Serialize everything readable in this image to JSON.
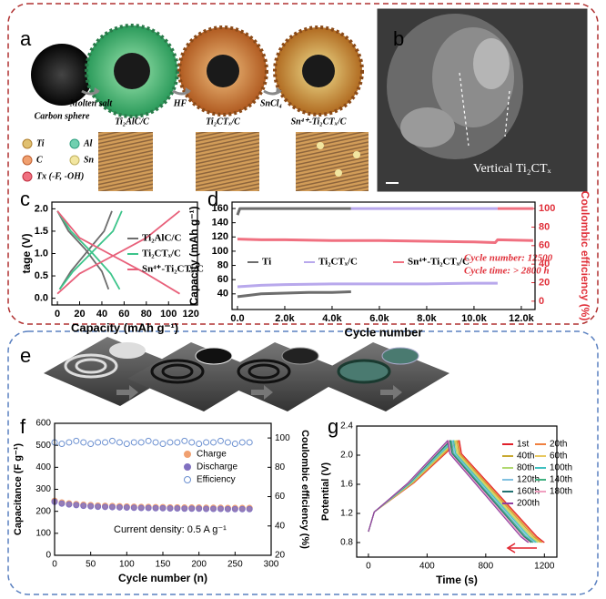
{
  "figure": {
    "panel_a": {
      "label": "a",
      "stages": [
        "Carbon sphere",
        "Ti₂AlC/C",
        "Ti₂CTₓ/C",
        "Sn⁴⁺-Ti₂CTₓ/C"
      ],
      "steps": [
        "Molten salt",
        "HF",
        "SnCl₄"
      ],
      "legend": [
        "Ti",
        "Al",
        "C",
        "Sn",
        "Tx (-F, -OH)"
      ]
    },
    "panel_b": {
      "label": "b",
      "annotation": "Vertical Ti₂CTₓ"
    },
    "panel_e": {
      "label": "e"
    }
  },
  "chart_data": [
    {
      "type": "line",
      "label": "c",
      "ylabel": "tage (V)",
      "xlabel": "Capacity (mAh g⁻¹)",
      "xlim": [
        -5,
        126
      ],
      "ylim": [
        -0.15,
        2.15
      ],
      "xticks": [
        0,
        20,
        40,
        60,
        80,
        100,
        120
      ],
      "yticks": [
        {
          "value": 0,
          "label": "0.0"
        },
        0.5,
        {
          "value": 1,
          "label": "1.0"
        },
        1.5,
        {
          "value": 2,
          "label": "2.0"
        }
      ],
      "series": [
        {
          "name": "Ti₂AlC/C",
          "color": "#6d6d6d",
          "x": [
            0,
            10,
            25,
            40,
            46,
            null,
            2,
            12,
            27,
            42,
            49
          ],
          "values": [
            1.95,
            1.5,
            1.1,
            0.6,
            0.2,
            null,
            0.2,
            0.6,
            1.05,
            1.5,
            1.95
          ]
        },
        {
          "name": "Ti₂CTₓ/C",
          "color": "#3cc48a",
          "x": [
            0,
            12,
            30,
            48,
            56,
            null,
            2,
            14,
            32,
            50,
            58
          ],
          "values": [
            1.95,
            1.5,
            1.05,
            0.55,
            0.2,
            null,
            0.2,
            0.6,
            1.05,
            1.5,
            1.95
          ]
        },
        {
          "name": "Sn⁴⁺-Ti₂CTₓ/C",
          "color": "#e8607a",
          "x": [
            0,
            20,
            50,
            80,
            110,
            null,
            0,
            20,
            50,
            80,
            110
          ],
          "values": [
            1.95,
            1.35,
            0.95,
            0.55,
            0.1,
            null,
            0.1,
            0.55,
            0.95,
            1.35,
            1.95
          ]
        }
      ]
    },
    {
      "type": "line",
      "label": "d",
      "ylabel": "Capacity (mAh g⁻¹)",
      "xlabel": "Cycle number",
      "y2label": "Coulombic efficiency (%)",
      "y2color": "#e0303a",
      "xlim": [
        -230,
        12580
      ],
      "ylim": [
        18,
        169
      ],
      "y2lim": [
        -9,
        107
      ],
      "xticks": [
        {
          "value": 0,
          "label": "0.0"
        },
        {
          "value": 2000,
          "label": "2.0k"
        },
        {
          "value": 4000,
          "label": "4.0k"
        },
        {
          "value": 6000,
          "label": "6.0k"
        },
        {
          "value": 8000,
          "label": "8.0k"
        },
        {
          "value": 10000,
          "label": "10.0k"
        },
        {
          "value": 12000,
          "label": "12.0k"
        }
      ],
      "yticks": [
        40,
        60,
        80,
        100,
        120,
        140,
        160
      ],
      "y2ticks": [
        0,
        20,
        40,
        60,
        80,
        100
      ],
      "annotations": [
        "Cycle number: 12500",
        "Cycle time: > 2800 h"
      ],
      "series": [
        {
          "name": "Ti",
          "color": "#6d6d6d",
          "x": [
            0,
            500,
            1000,
            2000,
            3000,
            4000,
            4800
          ],
          "values": [
            36,
            38,
            40,
            41,
            42,
            42,
            43
          ]
        },
        {
          "name": "Ti₂CTₓ/C",
          "color": "#b8a8ec",
          "x": [
            0,
            1000,
            2000,
            4000,
            6000,
            8000,
            10000,
            11000
          ],
          "values": [
            50,
            52,
            53,
            54,
            54,
            54,
            55,
            55
          ]
        },
        {
          "name": "Sn⁴⁺-Ti₂CTₓ/C",
          "color": "#f07080",
          "x": [
            0,
            1000,
            2000,
            4000,
            6000,
            8000,
            10000,
            10900,
            11000,
            12500
          ],
          "values": [
            117,
            116,
            116,
            115,
            115,
            114,
            113,
            112,
            116,
            115
          ]
        },
        {
          "color": "#6d6d6d",
          "axis": "y2",
          "x": [
            0,
            100,
            4800
          ],
          "values": [
            93,
            100,
            100
          ]
        },
        {
          "color": "#b8a8ec",
          "axis": "y2",
          "x": [
            4800,
            11000
          ],
          "values": [
            100,
            100
          ]
        },
        {
          "color": "#f07080",
          "axis": "y2",
          "x": [
            11000,
            12500
          ],
          "values": [
            100,
            100
          ]
        }
      ]
    },
    {
      "type": "scatter",
      "label": "f",
      "ylabel": "Capacitance (F g⁻¹)",
      "xlabel": "Cycle number (n)",
      "y2label": "Coulombic efficiency (%)",
      "y2color": "#000000",
      "xlim": [
        0,
        300
      ],
      "ylim": [
        0,
        600
      ],
      "y2lim": [
        20,
        110
      ],
      "xticks": [
        0,
        50,
        100,
        150,
        200,
        250,
        300
      ],
      "yticks": [
        0,
        100,
        200,
        300,
        400,
        500,
        600
      ],
      "y2ticks": [
        20,
        40,
        60,
        80,
        100
      ],
      "annotations": [
        "Current density: 0.5 A g⁻¹"
      ],
      "series": [
        {
          "name": "Charge",
          "color": "#f0a070",
          "x": [
            0,
            10,
            20,
            30,
            40,
            50,
            60,
            70,
            80,
            90,
            100,
            110,
            120,
            130,
            140,
            150,
            160,
            170,
            180,
            190,
            200,
            210,
            220,
            230,
            240,
            250,
            260,
            270
          ],
          "values": [
            248,
            240,
            236,
            233,
            230,
            228,
            226,
            225,
            224,
            223,
            222,
            221,
            220,
            220,
            219,
            219,
            218,
            218,
            217,
            217,
            217,
            216,
            216,
            216,
            215,
            215,
            215,
            215
          ]
        },
        {
          "name": "Discharge",
          "color": "#8070c0",
          "x": [
            0,
            10,
            20,
            30,
            40,
            50,
            60,
            70,
            80,
            90,
            100,
            110,
            120,
            130,
            140,
            150,
            160,
            170,
            180,
            190,
            200,
            210,
            220,
            230,
            240,
            250,
            260,
            270
          ],
          "values": [
            243,
            235,
            231,
            228,
            225,
            223,
            221,
            220,
            219,
            218,
            217,
            216,
            215,
            215,
            214,
            214,
            213,
            213,
            212,
            212,
            212,
            211,
            211,
            211,
            210,
            210,
            210,
            210
          ]
        },
        {
          "name": "Efficiency",
          "color": "#6a8fd0",
          "marker": "open",
          "axis": "y2",
          "x": [
            0,
            10,
            20,
            30,
            40,
            50,
            60,
            70,
            80,
            90,
            100,
            110,
            120,
            130,
            140,
            150,
            160,
            170,
            180,
            190,
            200,
            210,
            220,
            230,
            240,
            250,
            260,
            270
          ],
          "values": [
            97,
            96,
            97,
            98,
            97,
            96,
            97,
            97,
            98,
            97,
            96,
            97,
            97,
            98,
            97,
            96,
            97,
            97,
            98,
            97,
            96,
            97,
            97,
            98,
            97,
            96,
            97,
            97
          ]
        }
      ]
    },
    {
      "type": "line",
      "label": "g",
      "ylabel": "Potential (V)",
      "xlabel": "Time (s)",
      "xlim": [
        -80,
        1285
      ],
      "ylim": [
        0.6,
        2.4
      ],
      "xticks": [
        0,
        400,
        800,
        1200
      ],
      "yticks": [
        0.8,
        1.2,
        1.6,
        {
          "value": 2,
          "label": "2.0"
        },
        2.4
      ],
      "series": [
        {
          "name": "1st",
          "color": "#e0202a",
          "x": [
            0,
            40,
            310,
            620,
            635,
            1150,
            1200
          ],
          "values": [
            0.95,
            1.22,
            1.62,
            2.2,
            2.02,
            0.88,
            0.8
          ]
        },
        {
          "name": "20th",
          "color": "#f08040",
          "x": [
            0,
            40,
            306,
            612,
            627,
            1139,
            1189
          ],
          "values": [
            0.95,
            1.22,
            1.62,
            2.2,
            2.02,
            0.88,
            0.8
          ]
        },
        {
          "name": "40th",
          "color": "#c8a830",
          "x": [
            0,
            40,
            302,
            604,
            619,
            1128,
            1178
          ],
          "values": [
            0.95,
            1.22,
            1.62,
            2.2,
            2.02,
            0.88,
            0.8
          ]
        },
        {
          "name": "60th",
          "color": "#e8c860",
          "x": [
            0,
            40,
            298,
            596,
            611,
            1117,
            1167
          ],
          "values": [
            0.95,
            1.22,
            1.62,
            2.2,
            2.02,
            0.88,
            0.8
          ]
        },
        {
          "name": "80th",
          "color": "#b0d870",
          "x": [
            0,
            40,
            294,
            588,
            603,
            1106,
            1156
          ],
          "values": [
            0.95,
            1.22,
            1.62,
            2.2,
            2.02,
            0.88,
            0.8
          ]
        },
        {
          "name": "100th",
          "color": "#40c0c0",
          "x": [
            0,
            40,
            290,
            580,
            595,
            1095,
            1145
          ],
          "values": [
            0.95,
            1.22,
            1.62,
            2.2,
            2.02,
            0.88,
            0.8
          ]
        },
        {
          "name": "120th",
          "color": "#80c0e0",
          "x": [
            0,
            40,
            286,
            572,
            587,
            1084,
            1134
          ],
          "values": [
            0.95,
            1.22,
            1.62,
            2.2,
            2.02,
            0.88,
            0.8
          ]
        },
        {
          "name": "140th",
          "color": "#40b080",
          "x": [
            0,
            40,
            282,
            564,
            579,
            1073,
            1123
          ],
          "values": [
            0.95,
            1.22,
            1.62,
            2.2,
            2.02,
            0.88,
            0.8
          ]
        },
        {
          "name": "160th",
          "color": "#207070",
          "x": [
            0,
            40,
            278,
            556,
            571,
            1062,
            1112
          ],
          "values": [
            0.95,
            1.22,
            1.62,
            2.2,
            2.02,
            0.88,
            0.8
          ]
        },
        {
          "name": "180th",
          "color": "#f0a0c0",
          "x": [
            0,
            40,
            274,
            548,
            563,
            1051,
            1101
          ],
          "values": [
            0.95,
            1.22,
            1.62,
            2.2,
            2.02,
            0.88,
            0.8
          ]
        },
        {
          "name": "200th",
          "color": "#9040a0",
          "x": [
            0,
            40,
            270,
            540,
            555,
            1040,
            1090
          ],
          "values": [
            0.95,
            1.22,
            1.62,
            2.2,
            2.02,
            0.88,
            0.8
          ]
        }
      ]
    }
  ]
}
